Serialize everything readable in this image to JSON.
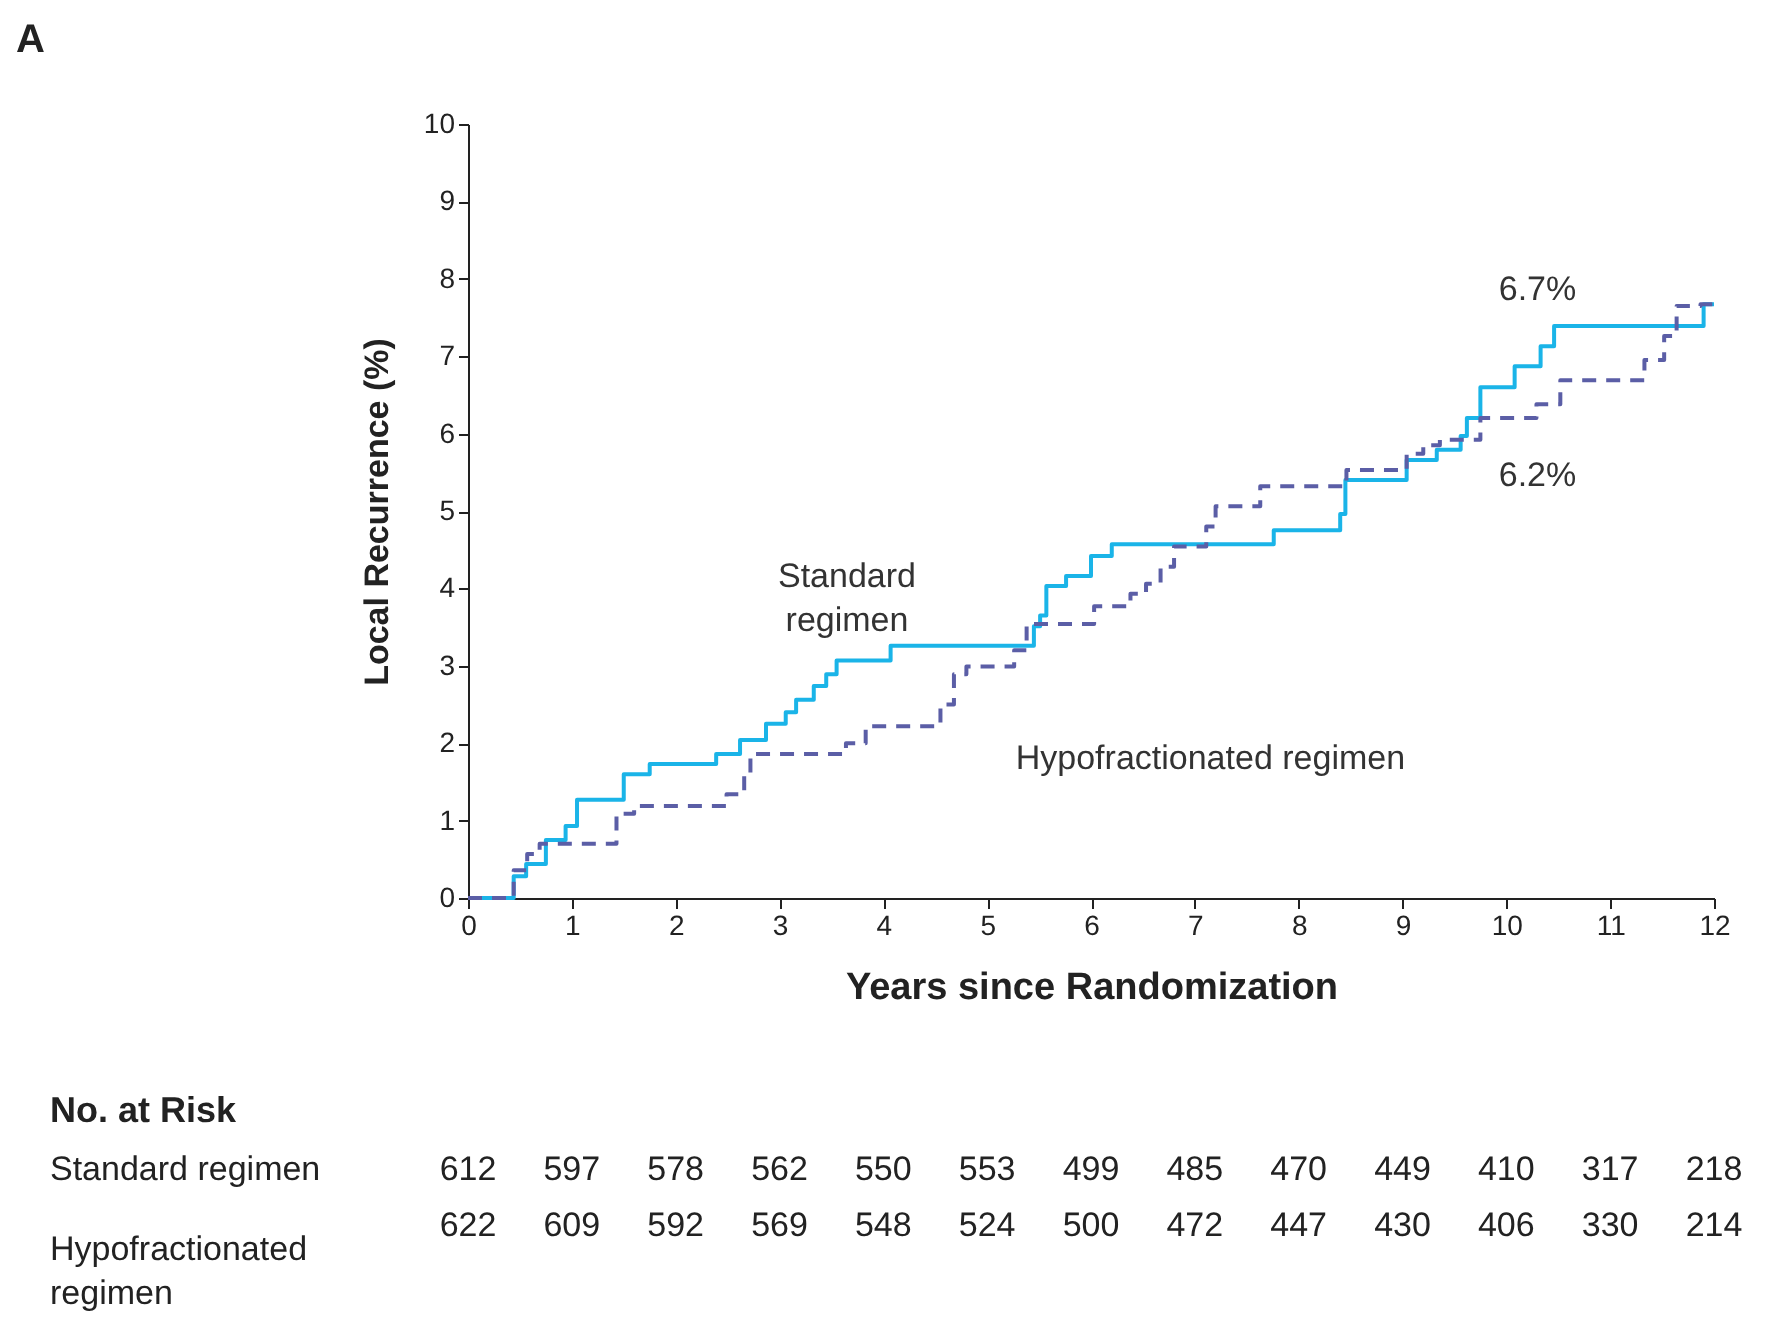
{
  "chart_data": {
    "type": "step",
    "xlabel": "Years since Randomization",
    "ylabel": "Local Recurrence (%)",
    "xlim": [
      0,
      12
    ],
    "xticks": [
      0,
      1,
      2,
      3,
      4,
      5,
      6,
      7,
      8,
      9,
      10,
      11,
      12
    ],
    "ylim": [
      0,
      10
    ],
    "yticks": [
      0,
      1,
      2,
      3,
      4,
      5,
      6,
      7,
      8,
      9,
      10
    ],
    "grid": false,
    "series": [
      {
        "name": "Standard regimen",
        "color": "#1ab4e8",
        "line_style": "solid",
        "x": [
          0,
          0.44,
          0.56,
          0.75,
          0.94,
          1.05,
          1.5,
          1.75,
          2.39,
          2.62,
          2.87,
          3.06,
          3.16,
          3.33,
          3.45,
          3.55,
          4.07,
          5.45,
          5.51,
          5.57,
          5.76,
          6.0,
          6.2,
          7.76,
          8.4,
          8.45,
          9.04,
          9.33,
          9.56,
          9.62,
          9.75,
          10.08,
          10.33,
          10.46,
          11.9,
          12
        ],
        "values": [
          0,
          0.28,
          0.44,
          0.75,
          0.93,
          1.27,
          1.6,
          1.73,
          1.86,
          2.04,
          2.25,
          2.4,
          2.56,
          2.74,
          2.89,
          3.07,
          3.26,
          3.51,
          3.65,
          4.03,
          4.16,
          4.42,
          4.57,
          4.75,
          4.96,
          5.4,
          5.66,
          5.79,
          5.97,
          6.2,
          6.6,
          6.87,
          7.13,
          7.39,
          7.67,
          7.67
        ]
      },
      {
        "name": "Hypofractionated regimen",
        "color": "#5b5ea6",
        "line_style": "dashed",
        "x": [
          0,
          0.44,
          0.57,
          0.69,
          1.43,
          1.6,
          2.49,
          2.66,
          2.72,
          3.64,
          3.83,
          4.55,
          4.68,
          4.8,
          5.26,
          5.38,
          6.03,
          6.38,
          6.53,
          6.67,
          6.8,
          7.11,
          7.2,
          7.63,
          8.46,
          9.04,
          9.2,
          9.36,
          9.75,
          10.29,
          10.52,
          11.33,
          11.52,
          11.64,
          11.87,
          12
        ],
        "values": [
          0,
          0.36,
          0.57,
          0.7,
          1.09,
          1.19,
          1.34,
          1.6,
          1.86,
          2.0,
          2.22,
          2.5,
          2.89,
          2.99,
          3.2,
          3.54,
          3.77,
          3.93,
          4.06,
          4.28,
          4.54,
          4.8,
          5.06,
          5.32,
          5.53,
          5.74,
          5.85,
          5.92,
          6.2,
          6.38,
          6.69,
          6.95,
          7.26,
          7.65,
          7.67,
          7.67
        ]
      }
    ],
    "annotations": [
      "A",
      "6.7%",
      "6.2%",
      "No. at Risk",
      "Standard regimen",
      "612 597 578 562 550 553 499 485 470 449 410 317 218",
      "Hypofractionated regimen",
      "622 609 592 569 548 524 500 472 447 430 406 330 214"
    ]
  }
}
